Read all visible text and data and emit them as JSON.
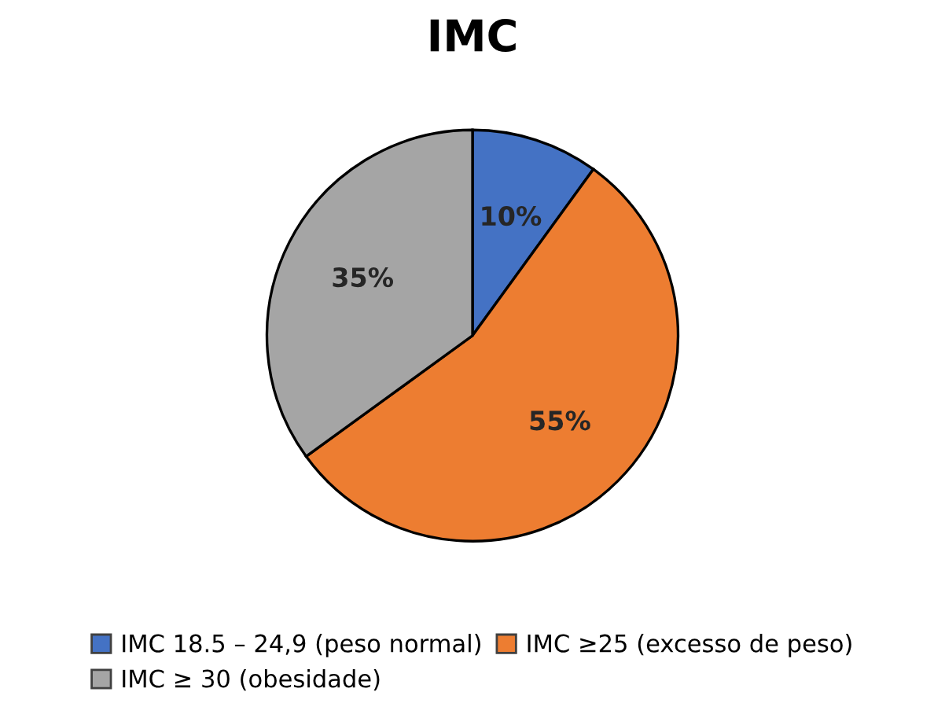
{
  "chart_data": {
    "type": "pie",
    "title": "IMC",
    "categories": [
      "IMC 18.5 – 24,9 (peso normal)",
      "IMC ≥25 (excesso de peso)",
      "IMC ≥ 30 (obesidade)"
    ],
    "values": [
      10,
      55,
      35
    ],
    "colors": [
      "#4472c4",
      "#ed7d31",
      "#a5a5a5"
    ],
    "value_labels": [
      "10%",
      "55%",
      "35%"
    ],
    "legend": "bottom"
  }
}
